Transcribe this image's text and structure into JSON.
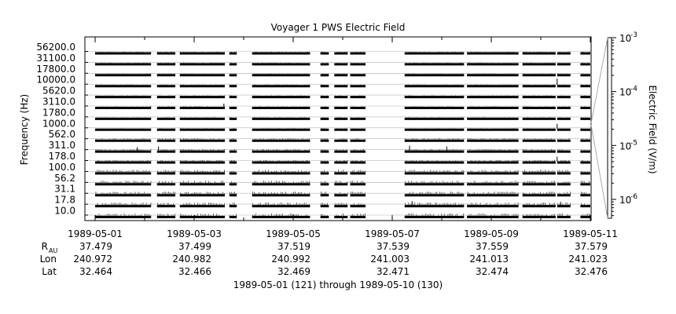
{
  "chart_data": {
    "type": "line",
    "title": "Voyager 1 PWS Electric Field",
    "ylabel": "Frequency (Hz)",
    "colorbar_label": "Electric Field (V/m)",
    "channels": [
      "56200.0",
      "31100.0",
      "17800.0",
      "10000.0",
      "5620.0",
      "3110.0",
      "1780.0",
      "1000.0",
      "562.0",
      "311.0",
      "178.0",
      "100.0",
      "56.2",
      "31.1",
      "17.8",
      "10.0"
    ],
    "x_range": [
      "1989-05-01",
      "1989-05-11"
    ],
    "x_ticks": [
      "1989-05-01",
      "1989-05-03",
      "1989-05-05",
      "1989-05-07",
      "1989-05-09",
      "1989-05-11"
    ],
    "colorbar_ticks": [
      {
        "base": "10",
        "exp": "-3"
      },
      {
        "base": "10",
        "exp": "-4"
      },
      {
        "base": "10",
        "exp": "-5"
      },
      {
        "base": "10",
        "exp": "-6"
      }
    ],
    "colorbar_log_range": [
      -6.35,
      -3
    ],
    "data_intervals_days": [
      [
        0.0,
        1.13
      ],
      [
        1.25,
        1.62
      ],
      [
        1.71,
        2.62
      ],
      [
        2.71,
        2.86
      ],
      [
        3.17,
        4.34
      ],
      [
        4.55,
        4.72
      ],
      [
        4.83,
        5.1
      ],
      [
        5.15,
        5.46
      ],
      [
        6.25,
        7.45
      ],
      [
        7.51,
        8.55
      ],
      [
        8.63,
        9.3
      ],
      [
        9.33,
        9.6
      ],
      [
        9.8,
        10.0
      ]
    ],
    "grid": false
  },
  "ephemeris": {
    "rows": [
      {
        "label": "R",
        "sub": "AU",
        "values": [
          "37.479",
          "37.499",
          "37.519",
          "37.539",
          "37.559",
          "37.579"
        ]
      },
      {
        "label": "Lon",
        "sub": "",
        "values": [
          "240.972",
          "240.982",
          "240.992",
          "241.003",
          "241.013",
          "241.023"
        ]
      },
      {
        "label": "Lat",
        "sub": "",
        "values": [
          "32.464",
          "32.466",
          "32.469",
          "32.471",
          "32.474",
          "32.476"
        ]
      }
    ]
  },
  "footer": "1989-05-01 (121) through 1989-05-10 (130)"
}
